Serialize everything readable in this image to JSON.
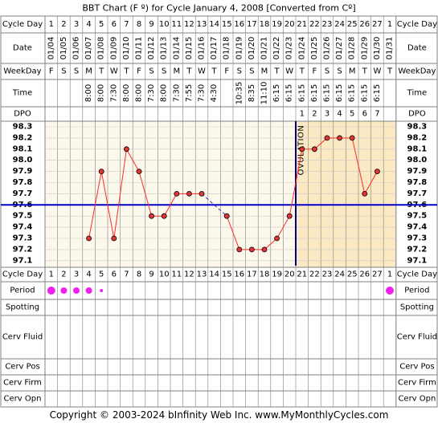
{
  "page_title": "BBT Chart (F º) for Cycle January 4, 2008  [Converted from Cº]",
  "footer": "Copyright © 2003-2024 bInfinity Web Inc.    www.MyMonthlyCycles.com",
  "row_labels": {
    "cycle_day": "Cycle Day",
    "date": "Date",
    "weekday": "WeekDay",
    "time": "Time",
    "dpo": "DPO",
    "period": "Period",
    "spotting": "Spotting",
    "cerv_fluid": "Cerv Fluid",
    "cerv_pos": "Cerv Pos",
    "cerv_firm": "Cerv Firm",
    "cerv_opn": "Cerv Opn"
  },
  "ovulation_label": "OVULATION",
  "colors": {
    "line": "#ff2a2a",
    "point_fill": "#e43434",
    "coverline": "#0000cc",
    "ovulation_line": "#000080",
    "post_ovulation_bg": "#fbe9c4",
    "pre_ovulation_bg": "#fdf8ec",
    "period": "#ee22ee",
    "grid": "#808080"
  },
  "chart_data": {
    "type": "line",
    "title": "BBT Chart (F º) for Cycle January 4, 2008  [Converted from Cº]",
    "cycle_days": [
      "1",
      "2",
      "3",
      "4",
      "5",
      "6",
      "7",
      "8",
      "9",
      "10",
      "11",
      "12",
      "13",
      "14",
      "15",
      "16",
      "17",
      "18",
      "19",
      "20",
      "21",
      "22",
      "23",
      "24",
      "25",
      "26",
      "27",
      "1"
    ],
    "dates": [
      "01/04",
      "01/05",
      "01/06",
      "01/07",
      "01/08",
      "01/09",
      "01/10",
      "01/11",
      "01/12",
      "01/13",
      "01/14",
      "01/15",
      "01/16",
      "01/17",
      "01/18",
      "01/19",
      "01/20",
      "01/21",
      "01/22",
      "01/23",
      "01/24",
      "01/25",
      "01/26",
      "01/27",
      "01/28",
      "01/29",
      "01/30",
      "01/31"
    ],
    "weekdays": [
      "F",
      "S",
      "S",
      "M",
      "T",
      "W",
      "T",
      "F",
      "S",
      "S",
      "M",
      "T",
      "W",
      "T",
      "F",
      "S",
      "S",
      "M",
      "T",
      "W",
      "T",
      "F",
      "S",
      "S",
      "M",
      "T",
      "W",
      "T"
    ],
    "times": [
      "",
      "",
      "",
      "8:00",
      "8:00",
      "7:30",
      "8:00",
      "8:00",
      "7:30",
      "8:00",
      "7:30",
      "7:55",
      "7:30",
      "4:30",
      "",
      "10:35",
      "8:35",
      "11:10",
      "6:15",
      "6:15",
      "6:15",
      "6:15",
      "6:15",
      "6:15",
      "6:15",
      "6:15",
      "6:15",
      ""
    ],
    "dpo": [
      "",
      "",
      "",
      "",
      "",
      "",
      "",
      "",
      "",
      "",
      "",
      "",
      "",
      "",
      "",
      "",
      "",
      "",
      "",
      "",
      "1",
      "2",
      "3",
      "4",
      "5",
      "6",
      "7",
      ""
    ],
    "temperatures": [
      null,
      null,
      null,
      97.3,
      97.9,
      97.3,
      98.1,
      97.9,
      97.5,
      97.5,
      97.7,
      97.7,
      97.7,
      null,
      97.5,
      97.2,
      97.2,
      97.2,
      97.3,
      97.5,
      98.1,
      98.1,
      98.2,
      98.2,
      98.2,
      97.7,
      97.9,
      null
    ],
    "y_ticks": [
      98.3,
      98.2,
      98.1,
      98.0,
      97.9,
      97.8,
      97.7,
      97.6,
      97.5,
      97.4,
      97.3,
      97.2,
      97.1
    ],
    "ylim": [
      97.1,
      98.3
    ],
    "coverline": 97.6,
    "ovulation_day_index": 19,
    "period": [
      "heavy",
      "medium",
      "medium",
      "medium",
      "light",
      "",
      "",
      "",
      "",
      "",
      "",
      "",
      "",
      "",
      "",
      "",
      "",
      "",
      "",
      "",
      "",
      "",
      "",
      "",
      "",
      "",
      "",
      "heavy"
    ]
  }
}
